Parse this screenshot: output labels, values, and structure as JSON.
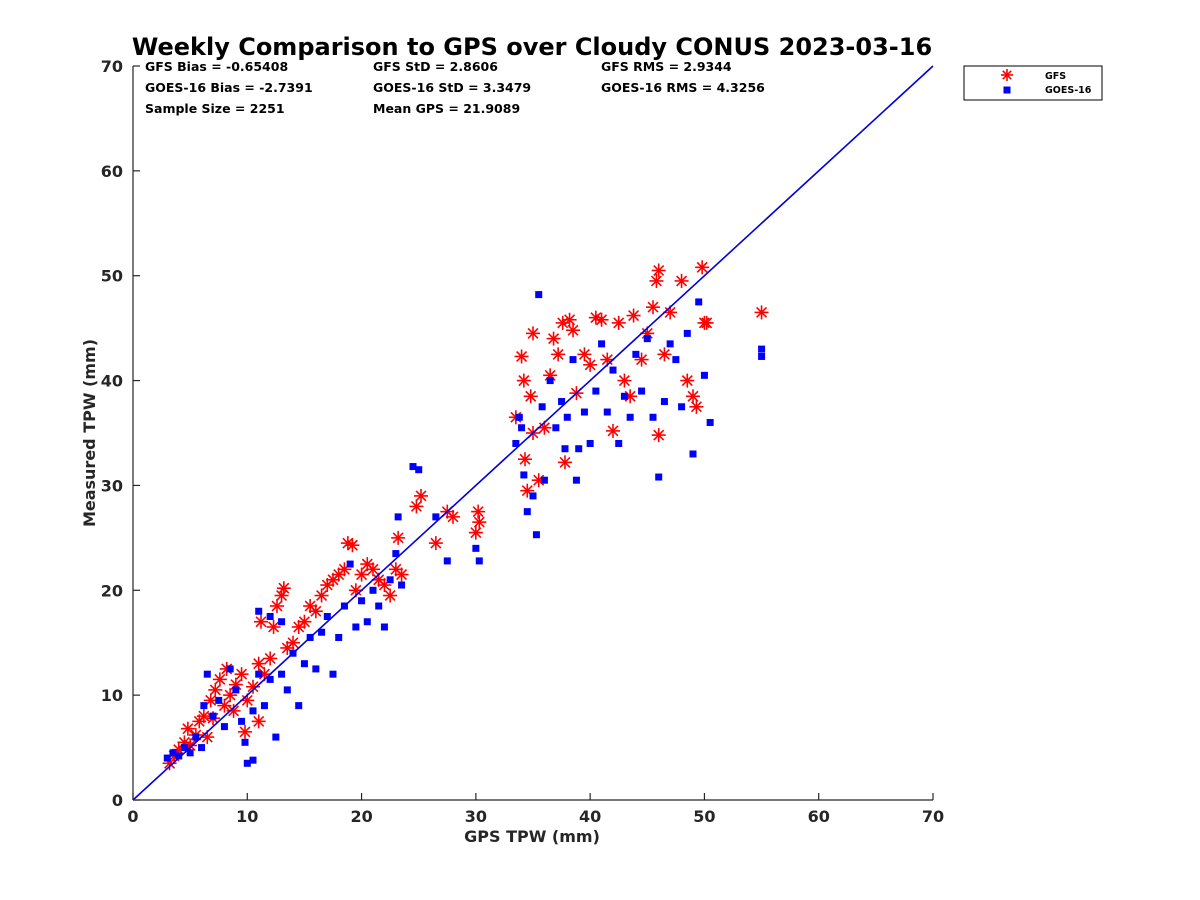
{
  "colors": {
    "gfs": "#ff0000",
    "goes": "#0000ff",
    "axis": "#262626",
    "line": "#0000dd"
  },
  "chart_data": {
    "type": "scatter",
    "title": "Weekly Comparison to GPS over Cloudy CONUS 2023-03-16",
    "xlabel": "GPS TPW (mm)",
    "ylabel": "Measured TPW (mm)",
    "xlim": [
      0,
      70
    ],
    "ylim": [
      0,
      70
    ],
    "xticks": [
      "0",
      "10",
      "20",
      "30",
      "40",
      "50",
      "60",
      "70"
    ],
    "yticks": [
      "0",
      "10",
      "20",
      "30",
      "40",
      "50",
      "60",
      "70"
    ],
    "grid": false,
    "legend_position": "outside top-right",
    "stats": [
      "GFS Bias = -0.65408",
      "GFS StD = 2.8606",
      "GFS RMS = 2.9344",
      "GOES-16 Bias = -2.7391",
      "GOES-16 StD = 3.3479",
      "GOES-16 RMS = 4.3256",
      "Sample Size = 2251",
      "Mean GPS = 21.9089"
    ],
    "reference_line": {
      "x": [
        0,
        70
      ],
      "y": [
        0,
        70
      ]
    },
    "series": [
      {
        "name": "GFS",
        "marker": "asterisk",
        "color": "#ff0000",
        "points": [
          [
            3.2,
            3.5
          ],
          [
            3.6,
            4.2
          ],
          [
            4.0,
            4.8
          ],
          [
            4.5,
            5.5
          ],
          [
            4.8,
            6.8
          ],
          [
            5.0,
            5.2
          ],
          [
            5.5,
            6.2
          ],
          [
            5.8,
            7.5
          ],
          [
            6.2,
            8.0
          ],
          [
            6.5,
            6.0
          ],
          [
            6.8,
            9.5
          ],
          [
            7.0,
            7.8
          ],
          [
            7.2,
            10.5
          ],
          [
            7.6,
            11.5
          ],
          [
            8.0,
            9.0
          ],
          [
            8.2,
            12.5
          ],
          [
            8.5,
            10.0
          ],
          [
            8.8,
            8.5
          ],
          [
            9.0,
            11.0
          ],
          [
            9.5,
            12.0
          ],
          [
            9.8,
            6.5
          ],
          [
            10.0,
            9.5
          ],
          [
            10.5,
            10.8
          ],
          [
            11.0,
            7.5
          ],
          [
            11.0,
            13.0
          ],
          [
            11.2,
            17.0
          ],
          [
            11.5,
            12.0
          ],
          [
            12.0,
            13.5
          ],
          [
            12.3,
            16.5
          ],
          [
            12.6,
            18.5
          ],
          [
            13.0,
            19.5
          ],
          [
            13.2,
            20.2
          ],
          [
            13.5,
            14.5
          ],
          [
            14.0,
            15.0
          ],
          [
            14.5,
            16.5
          ],
          [
            15.0,
            17.0
          ],
          [
            15.5,
            18.5
          ],
          [
            16.0,
            18.0
          ],
          [
            16.5,
            19.5
          ],
          [
            17.0,
            20.5
          ],
          [
            17.5,
            21.0
          ],
          [
            18.0,
            21.5
          ],
          [
            18.5,
            22.0
          ],
          [
            18.8,
            24.5
          ],
          [
            19.2,
            24.3
          ],
          [
            19.5,
            20.0
          ],
          [
            20.0,
            21.5
          ],
          [
            20.5,
            22.5
          ],
          [
            21.0,
            22.0
          ],
          [
            21.5,
            21.0
          ],
          [
            22.0,
            20.5
          ],
          [
            22.5,
            19.5
          ],
          [
            23.0,
            22.0
          ],
          [
            23.2,
            25.0
          ],
          [
            23.5,
            21.5
          ],
          [
            24.8,
            28.0
          ],
          [
            25.2,
            29.0
          ],
          [
            26.5,
            24.5
          ],
          [
            27.5,
            27.5
          ],
          [
            28.0,
            27.0
          ],
          [
            30.0,
            25.5
          ],
          [
            30.2,
            27.5
          ],
          [
            30.3,
            26.5
          ],
          [
            33.5,
            36.5
          ],
          [
            34.0,
            42.3
          ],
          [
            34.2,
            40.0
          ],
          [
            34.3,
            32.5
          ],
          [
            34.5,
            29.5
          ],
          [
            34.8,
            38.5
          ],
          [
            35.0,
            35.0
          ],
          [
            35.0,
            44.5
          ],
          [
            35.5,
            30.5
          ],
          [
            36.0,
            35.5
          ],
          [
            36.5,
            40.5
          ],
          [
            36.8,
            44.0
          ],
          [
            37.2,
            42.5
          ],
          [
            37.6,
            45.5
          ],
          [
            37.8,
            32.2
          ],
          [
            38.2,
            45.8
          ],
          [
            38.5,
            44.8
          ],
          [
            38.8,
            38.8
          ],
          [
            39.5,
            42.5
          ],
          [
            40.0,
            41.5
          ],
          [
            40.5,
            46.0
          ],
          [
            41.0,
            45.8
          ],
          [
            41.5,
            42.0
          ],
          [
            42.0,
            35.2
          ],
          [
            42.5,
            45.5
          ],
          [
            43.0,
            40.0
          ],
          [
            43.5,
            38.5
          ],
          [
            43.8,
            46.2
          ],
          [
            44.5,
            42.0
          ],
          [
            45.0,
            44.5
          ],
          [
            45.5,
            47.0
          ],
          [
            45.8,
            49.5
          ],
          [
            46.0,
            50.5
          ],
          [
            46.0,
            34.8
          ],
          [
            46.5,
            42.5
          ],
          [
            47.0,
            46.5
          ],
          [
            48.0,
            49.5
          ],
          [
            48.5,
            40.0
          ],
          [
            49.0,
            38.5
          ],
          [
            49.3,
            37.5
          ],
          [
            49.8,
            50.8
          ],
          [
            50.0,
            45.5
          ],
          [
            50.2,
            45.5
          ],
          [
            55.0,
            46.5
          ]
        ]
      },
      {
        "name": "GOES-16",
        "marker": "square",
        "color": "#0000ff",
        "points": [
          [
            3.0,
            4.0
          ],
          [
            3.5,
            4.5
          ],
          [
            4.0,
            4.2
          ],
          [
            4.5,
            5.0
          ],
          [
            5.0,
            4.5
          ],
          [
            5.5,
            6.0
          ],
          [
            6.0,
            5.0
          ],
          [
            6.2,
            9.0
          ],
          [
            6.5,
            12.0
          ],
          [
            7.0,
            8.0
          ],
          [
            7.5,
            9.5
          ],
          [
            8.0,
            7.0
          ],
          [
            8.5,
            12.5
          ],
          [
            9.0,
            10.5
          ],
          [
            9.5,
            7.5
          ],
          [
            9.8,
            5.5
          ],
          [
            10.0,
            3.5
          ],
          [
            10.5,
            8.5
          ],
          [
            10.5,
            3.8
          ],
          [
            11.0,
            12.0
          ],
          [
            11.0,
            18.0
          ],
          [
            11.5,
            9.0
          ],
          [
            12.0,
            11.5
          ],
          [
            12.0,
            17.5
          ],
          [
            12.5,
            6.0
          ],
          [
            13.0,
            12.0
          ],
          [
            13.0,
            17.0
          ],
          [
            13.5,
            10.5
          ],
          [
            14.0,
            14.0
          ],
          [
            14.5,
            9.0
          ],
          [
            15.0,
            13.0
          ],
          [
            15.5,
            15.5
          ],
          [
            16.0,
            12.5
          ],
          [
            16.5,
            16.0
          ],
          [
            17.0,
            17.5
          ],
          [
            17.5,
            12.0
          ],
          [
            18.0,
            15.5
          ],
          [
            18.5,
            18.5
          ],
          [
            19.0,
            22.5
          ],
          [
            19.5,
            16.5
          ],
          [
            20.0,
            19.0
          ],
          [
            20.5,
            17.0
          ],
          [
            21.0,
            20.0
          ],
          [
            21.5,
            18.5
          ],
          [
            22.0,
            16.5
          ],
          [
            22.5,
            21.0
          ],
          [
            23.0,
            23.5
          ],
          [
            23.2,
            27.0
          ],
          [
            23.5,
            20.5
          ],
          [
            24.5,
            31.8
          ],
          [
            25.0,
            31.5
          ],
          [
            26.5,
            27.0
          ],
          [
            27.5,
            22.8
          ],
          [
            30.0,
            24.0
          ],
          [
            30.3,
            22.8
          ],
          [
            33.5,
            34.0
          ],
          [
            33.8,
            36.5
          ],
          [
            34.0,
            35.5
          ],
          [
            34.2,
            31.0
          ],
          [
            34.5,
            27.5
          ],
          [
            35.0,
            29.0
          ],
          [
            35.3,
            25.3
          ],
          [
            35.5,
            48.2
          ],
          [
            35.8,
            37.5
          ],
          [
            36.0,
            30.5
          ],
          [
            36.5,
            40.0
          ],
          [
            37.0,
            35.5
          ],
          [
            37.5,
            38.0
          ],
          [
            37.8,
            33.5
          ],
          [
            38.0,
            36.5
          ],
          [
            38.5,
            42.0
          ],
          [
            38.8,
            30.5
          ],
          [
            39.0,
            33.5
          ],
          [
            39.5,
            37.0
          ],
          [
            40.0,
            34.0
          ],
          [
            40.5,
            39.0
          ],
          [
            41.0,
            43.5
          ],
          [
            41.5,
            37.0
          ],
          [
            42.0,
            41.0
          ],
          [
            42.5,
            34.0
          ],
          [
            43.0,
            38.5
          ],
          [
            43.5,
            36.5
          ],
          [
            44.0,
            42.5
          ],
          [
            44.5,
            39.0
          ],
          [
            45.0,
            44.0
          ],
          [
            45.5,
            36.5
          ],
          [
            46.0,
            30.8
          ],
          [
            46.5,
            38.0
          ],
          [
            47.0,
            43.5
          ],
          [
            47.5,
            42.0
          ],
          [
            48.0,
            37.5
          ],
          [
            48.5,
            44.5
          ],
          [
            49.0,
            33.0
          ],
          [
            49.5,
            47.5
          ],
          [
            50.0,
            40.5
          ],
          [
            50.5,
            36.0
          ],
          [
            55.0,
            43.0
          ],
          [
            55.0,
            42.3
          ]
        ]
      }
    ]
  }
}
